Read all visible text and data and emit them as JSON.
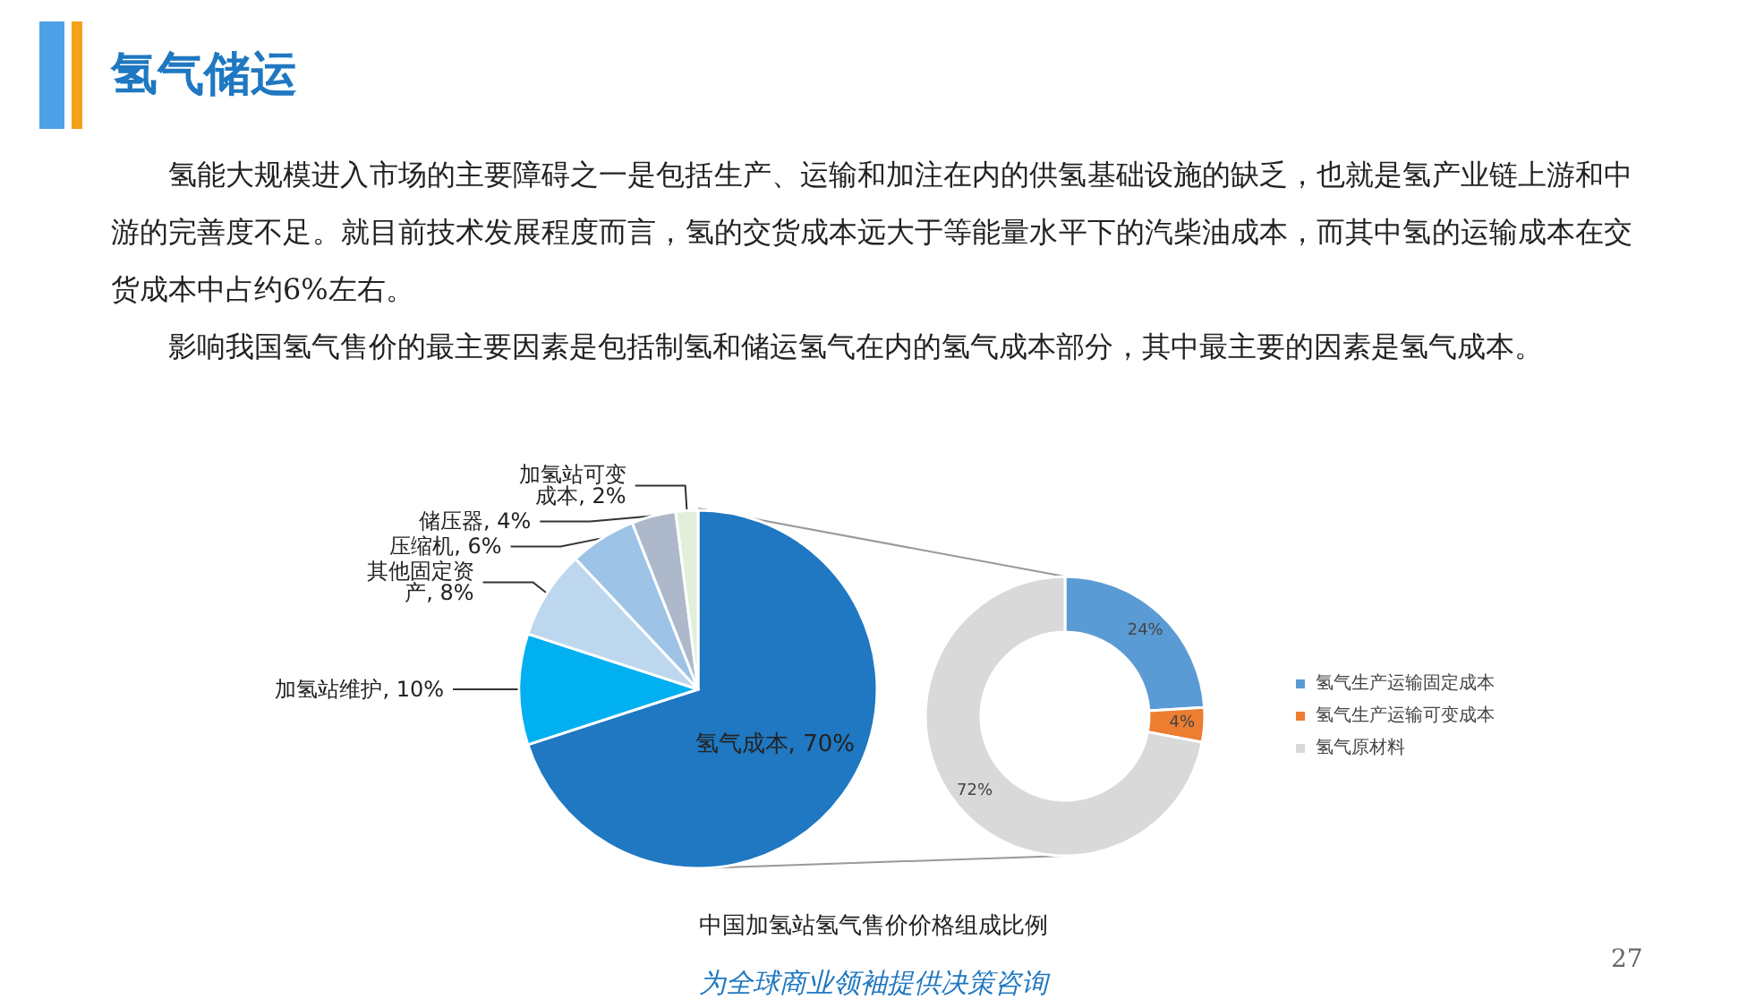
{
  "chart_data": [
    {
      "type": "pie",
      "title": "氢气储运",
      "annotations": [
        "氢能大规模进入市场的主要障碍之一是包括生产、运输和加注在内的供氢基础设施的缺乏，也就是氢产业链上游和中游的完善度不足。就目前技术发展程度而言，氢的交货成本远大于等能量水平下的汽柴油成本，而其中氢的运输成本在交货成本中占约6%左右。",
        "影响我国氢气售价的最主要因素是包括制氢和储运氢气在内的氢气成本部分，其中最主要的因素是氢气成本。",
        "中国加氢站氢气售价价格组成比例",
        "27",
        "为全球商业领袖提供决策咨询"
      ],
      "categories": [
        "氢气成本",
        "加氢站维护",
        "其他固定资产",
        "压缩机",
        "储压器",
        "加氢站可变成本"
      ],
      "values": [
        70,
        10,
        8,
        6,
        4,
        2
      ],
      "value_labels": [
        "70%",
        "10%",
        "8%",
        "6%",
        "4%",
        "2%"
      ],
      "colors": [
        "#1f78c1",
        "#00b0f0",
        "#bdd7ee",
        "#9dc3e6",
        "#adb9ca",
        "#e2efda"
      ],
      "data_labels": true,
      "legend": false
    },
    {
      "type": "donut",
      "categories": [
        "氢气生产运输固定成本",
        "氢气生产运输可变成本",
        "氢气原材料"
      ],
      "values": [
        24,
        4,
        72
      ],
      "value_labels": [
        "24%",
        "4%",
        "72%"
      ],
      "colors": [
        "#5b9bd5",
        "#ed7d31",
        "#d9d9d9"
      ],
      "data_labels": true,
      "legend": "right"
    }
  ]
}
